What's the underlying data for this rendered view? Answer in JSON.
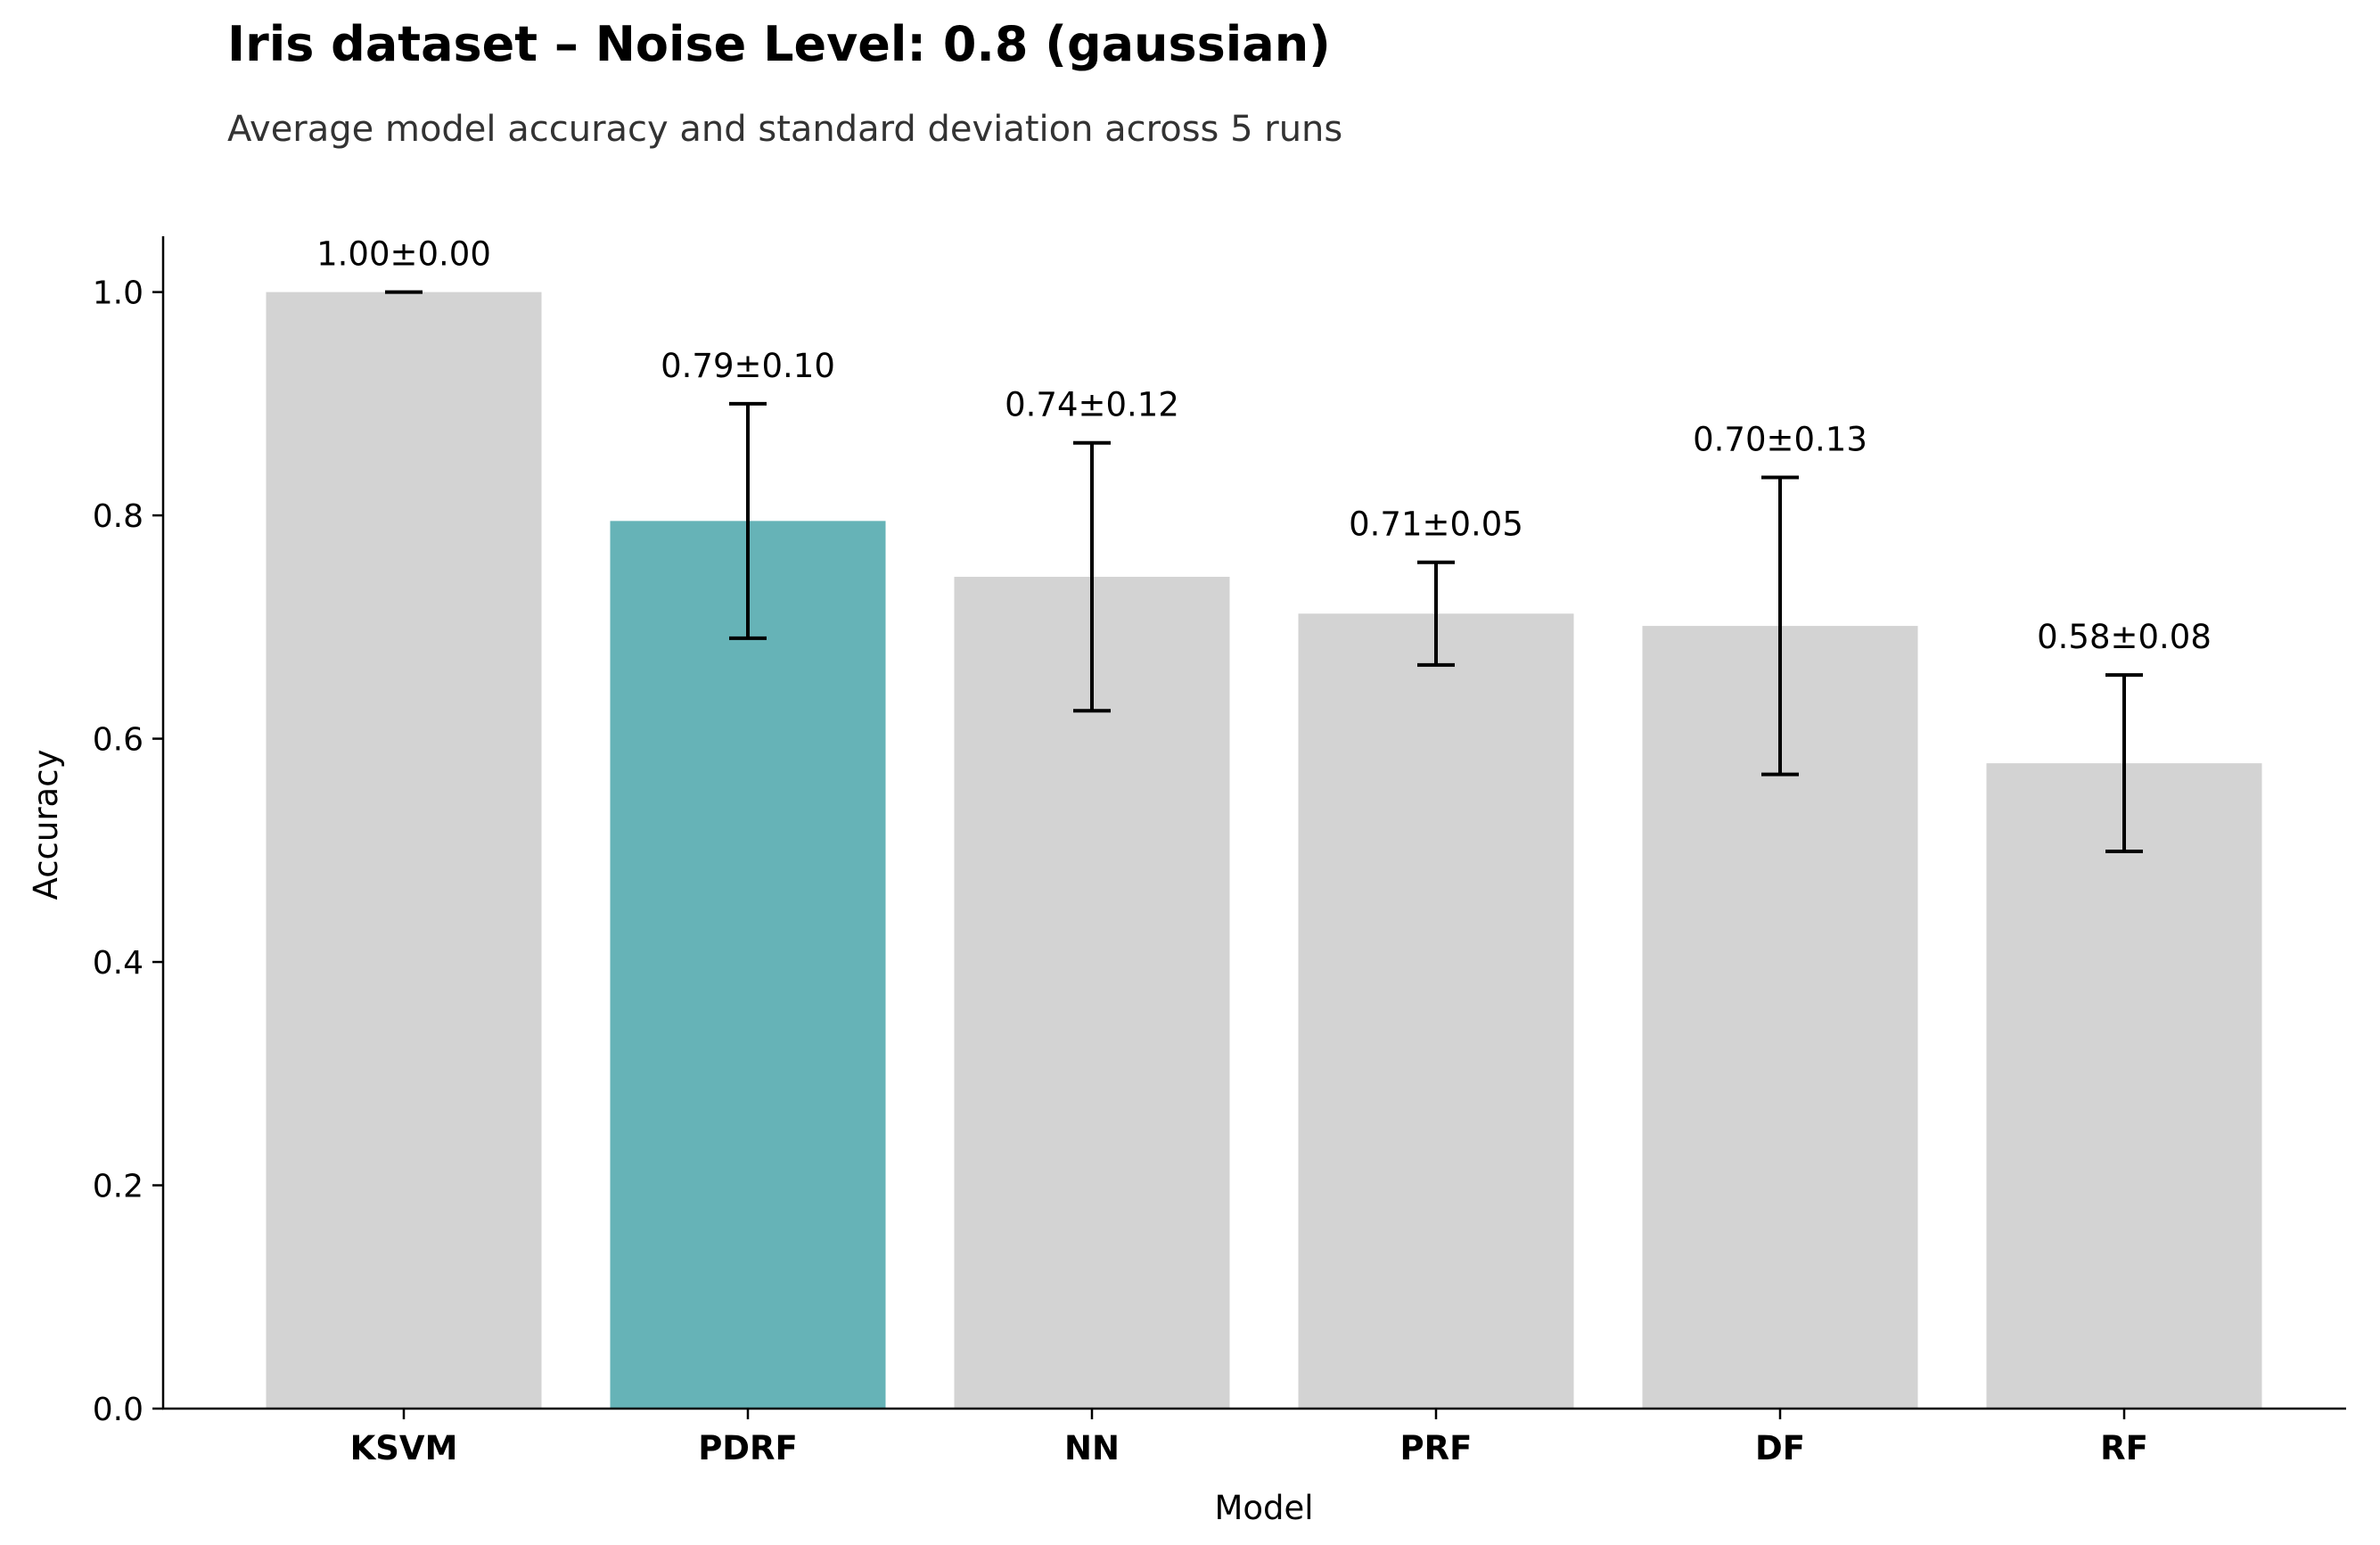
{
  "chart_data": {
    "type": "bar",
    "title": "Iris dataset – Noise Level: 0.8 (gaussian)",
    "subtitle": "Average model accuracy and standard deviation across 5 runs",
    "xlabel": "Model",
    "ylabel": "Accuracy",
    "ylim": [
      0,
      1.05
    ],
    "yticks": [
      0.0,
      0.2,
      0.4,
      0.6,
      0.8,
      1.0
    ],
    "ytick_labels": [
      "0.0",
      "0.2",
      "0.4",
      "0.6",
      "0.8",
      "1.0"
    ],
    "categories": [
      "KSVM",
      "PDRF",
      "NN",
      "PRF",
      "DF",
      "RF"
    ],
    "values": [
      1.0,
      0.795,
      0.745,
      0.712,
      0.701,
      0.578
    ],
    "errors": [
      0.0,
      0.105,
      0.12,
      0.046,
      0.133,
      0.079
    ],
    "value_labels": [
      "1.00±0.00",
      "0.79±0.10",
      "0.74±0.12",
      "0.71±0.05",
      "0.70±0.13",
      "0.58±0.08"
    ],
    "bar_colors": [
      "#d3d3d3",
      "#66b3b7",
      "#d3d3d3",
      "#d3d3d3",
      "#d3d3d3",
      "#d3d3d3"
    ],
    "highlight": "PDRF",
    "grid": false,
    "legend": "none"
  }
}
